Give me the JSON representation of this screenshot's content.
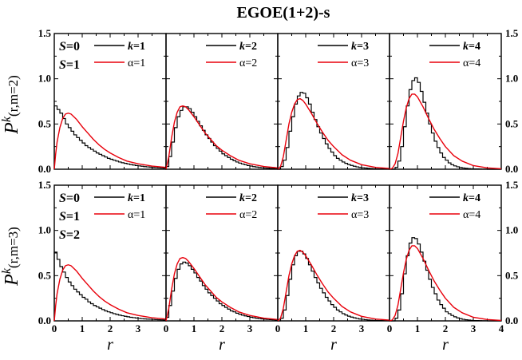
{
  "title": "EGOE(1+2)-s",
  "xlabel": "r",
  "colors": {
    "hist": "#000000",
    "curve": "#e8000b"
  },
  "chart_data": {
    "type": "line",
    "title": "EGOE(1+2)-s",
    "xlabel": "r",
    "xlim": [
      0,
      4
    ],
    "ylim": [
      0,
      1.5
    ],
    "x_ticks": [
      "0",
      "1",
      "2",
      "3",
      "4"
    ],
    "y_ticks": [
      "0.0",
      "0.5",
      "1.0",
      "1.5"
    ],
    "grid": false,
    "rows": [
      {
        "ylabel_main": "P",
        "ylabel_sup": "k",
        "ylabel_args": "(r,m=2)",
        "spin_labels": [
          {
            "var": "S",
            "rest": "=0"
          },
          {
            "var": "S",
            "rest": "=1"
          }
        ],
        "panels": [
          {
            "hist_label": "k=1",
            "curve_label": "α=1",
            "hist_name": "k",
            "hist_val": "=1",
            "curve_text": "α=1",
            "hist_x_step": 0.1,
            "hist": [
              0.7,
              0.66,
              0.62,
              0.56,
              0.5,
              0.46,
              0.42,
              0.38,
              0.35,
              0.32,
              0.29,
              0.26,
              0.24,
              0.22,
              0.2,
              0.18,
              0.165,
              0.15,
              0.135,
              0.12,
              0.11,
              0.1,
              0.09,
              0.08,
              0.072,
              0.065,
              0.058,
              0.052,
              0.046,
              0.041,
              0.037,
              0.033,
              0.029,
              0.026,
              0.023,
              0.02,
              0.018,
              0.016,
              0.014,
              0.012
            ],
            "curve_x": [
              0.0,
              0.05,
              0.1,
              0.2,
              0.3,
              0.4,
              0.5,
              0.6,
              0.7,
              0.8,
              1.0,
              1.2,
              1.4,
              1.6,
              1.8,
              2.0,
              2.3,
              2.6,
              3.0,
              3.5,
              4.0
            ],
            "curve_y": [
              0.0,
              0.17,
              0.3,
              0.46,
              0.56,
              0.61,
              0.62,
              0.61,
              0.58,
              0.55,
              0.47,
              0.4,
              0.33,
              0.27,
              0.22,
              0.18,
              0.13,
              0.09,
              0.06,
              0.035,
              0.02
            ]
          },
          {
            "hist_label": "k=2",
            "curve_label": "α=2",
            "hist_name": "k",
            "hist_val": "=2",
            "curve_text": "α=2",
            "hist_x_step": 0.1,
            "hist": [
              0.03,
              0.14,
              0.3,
              0.46,
              0.58,
              0.65,
              0.69,
              0.69,
              0.67,
              0.63,
              0.58,
              0.53,
              0.48,
              0.43,
              0.38,
              0.34,
              0.3,
              0.26,
              0.23,
              0.2,
              0.17,
              0.15,
              0.13,
              0.11,
              0.095,
              0.08,
              0.068,
              0.058,
              0.049,
              0.041,
              0.035,
              0.029,
              0.024,
              0.02,
              0.017,
              0.014,
              0.012,
              0.01,
              0.008,
              0.007
            ],
            "curve_x": [
              0.0,
              0.1,
              0.2,
              0.3,
              0.4,
              0.5,
              0.6,
              0.7,
              0.8,
              1.0,
              1.2,
              1.4,
              1.6,
              1.8,
              2.0,
              2.3,
              2.6,
              3.0,
              3.5,
              4.0
            ],
            "curve_y": [
              0.0,
              0.14,
              0.35,
              0.52,
              0.63,
              0.69,
              0.7,
              0.69,
              0.66,
              0.58,
              0.49,
              0.4,
              0.33,
              0.26,
              0.21,
              0.15,
              0.1,
              0.06,
              0.03,
              0.015
            ]
          },
          {
            "hist_label": "k=3",
            "curve_label": "α=3",
            "hist_name": "k",
            "hist_val": "=3",
            "curve_text": "α=3",
            "hist_x_step": 0.1,
            "hist": [
              0.0,
              0.03,
              0.1,
              0.24,
              0.42,
              0.58,
              0.72,
              0.81,
              0.85,
              0.84,
              0.79,
              0.72,
              0.63,
              0.55,
              0.47,
              0.4,
              0.34,
              0.28,
              0.23,
              0.19,
              0.15,
              0.12,
              0.1,
              0.08,
              0.065,
              0.052,
              0.042,
              0.033,
              0.026,
              0.02,
              0.016,
              0.013,
              0.01,
              0.008,
              0.006,
              0.005,
              0.004,
              0.003,
              0.002,
              0.002
            ],
            "curve_x": [
              0.0,
              0.1,
              0.2,
              0.3,
              0.4,
              0.5,
              0.6,
              0.7,
              0.8,
              0.9,
              1.0,
              1.2,
              1.4,
              1.6,
              1.8,
              2.0,
              2.3,
              2.6,
              3.0,
              3.5,
              4.0
            ],
            "curve_y": [
              0.0,
              0.03,
              0.14,
              0.32,
              0.5,
              0.63,
              0.72,
              0.77,
              0.78,
              0.76,
              0.72,
              0.62,
              0.51,
              0.41,
              0.32,
              0.25,
              0.16,
              0.1,
              0.05,
              0.02,
              0.008
            ]
          },
          {
            "hist_label": "k=4",
            "curve_label": "α=4",
            "hist_name": "k",
            "hist_val": "=4",
            "curve_text": "α=4",
            "hist_x_step": 0.1,
            "hist": [
              0.0,
              0.0,
              0.02,
              0.09,
              0.25,
              0.47,
              0.7,
              0.88,
              0.98,
              1.01,
              0.96,
              0.86,
              0.74,
              0.62,
              0.5,
              0.4,
              0.31,
              0.24,
              0.18,
              0.13,
              0.1,
              0.07,
              0.05,
              0.037,
              0.027,
              0.019,
              0.014,
              0.01,
              0.007,
              0.005,
              0.004,
              0.003,
              0.002,
              0.001,
              0.001,
              0.0,
              0.0,
              0.0,
              0.0,
              0.0
            ],
            "curve_x": [
              0.0,
              0.1,
              0.2,
              0.3,
              0.4,
              0.5,
              0.6,
              0.7,
              0.8,
              0.9,
              1.0,
              1.2,
              1.4,
              1.6,
              1.8,
              2.0,
              2.3,
              2.6,
              3.0,
              3.5,
              4.0
            ],
            "curve_y": [
              0.0,
              0.01,
              0.06,
              0.17,
              0.35,
              0.53,
              0.68,
              0.78,
              0.83,
              0.83,
              0.8,
              0.69,
              0.56,
              0.44,
              0.34,
              0.25,
              0.15,
              0.09,
              0.04,
              0.015,
              0.005
            ]
          }
        ]
      },
      {
        "ylabel_main": "P",
        "ylabel_sup": "k",
        "ylabel_args": "(r,m=3)",
        "spin_labels": [
          {
            "var": "S",
            "rest": "=0"
          },
          {
            "var": "S",
            "rest": "=1"
          },
          {
            "var": "S",
            "rest": "=2"
          }
        ],
        "panels": [
          {
            "hist_label": "k=1",
            "curve_label": "α=1",
            "hist_name": "k",
            "hist_val": "=1",
            "curve_text": "α=1",
            "hist_x_step": 0.1,
            "hist": [
              0.76,
              0.68,
              0.6,
              0.54,
              0.48,
              0.43,
              0.39,
              0.35,
              0.32,
              0.29,
              0.26,
              0.24,
              0.21,
              0.19,
              0.17,
              0.155,
              0.14,
              0.125,
              0.11,
              0.1,
              0.09,
              0.08,
              0.072,
              0.064,
              0.057,
              0.051,
              0.045,
              0.04,
              0.036,
              0.032,
              0.028,
              0.025,
              0.022,
              0.02,
              0.018,
              0.016,
              0.014,
              0.012,
              0.011,
              0.01
            ],
            "curve_x": [
              0.0,
              0.05,
              0.1,
              0.2,
              0.3,
              0.4,
              0.5,
              0.6,
              0.7,
              0.8,
              1.0,
              1.2,
              1.4,
              1.6,
              1.8,
              2.0,
              2.3,
              2.6,
              3.0,
              3.5,
              4.0
            ],
            "curve_y": [
              0.0,
              0.17,
              0.3,
              0.46,
              0.56,
              0.61,
              0.62,
              0.61,
              0.58,
              0.55,
              0.47,
              0.4,
              0.33,
              0.27,
              0.22,
              0.18,
              0.13,
              0.09,
              0.06,
              0.035,
              0.02
            ]
          },
          {
            "hist_label": "k=2",
            "curve_label": "α=2",
            "hist_name": "k",
            "hist_val": "=2",
            "curve_text": "α=2",
            "hist_x_step": 0.1,
            "hist": [
              0.04,
              0.17,
              0.33,
              0.47,
              0.57,
              0.63,
              0.65,
              0.64,
              0.61,
              0.57,
              0.53,
              0.48,
              0.44,
              0.39,
              0.35,
              0.31,
              0.28,
              0.25,
              0.22,
              0.19,
              0.17,
              0.15,
              0.13,
              0.11,
              0.1,
              0.085,
              0.074,
              0.064,
              0.055,
              0.048,
              0.041,
              0.035,
              0.03,
              0.026,
              0.022,
              0.019,
              0.016,
              0.014,
              0.012,
              0.01
            ],
            "curve_x": [
              0.0,
              0.1,
              0.2,
              0.3,
              0.4,
              0.5,
              0.6,
              0.7,
              0.8,
              1.0,
              1.2,
              1.4,
              1.6,
              1.8,
              2.0,
              2.3,
              2.6,
              3.0,
              3.5,
              4.0
            ],
            "curve_y": [
              0.0,
              0.14,
              0.35,
              0.52,
              0.63,
              0.69,
              0.7,
              0.69,
              0.66,
              0.58,
              0.49,
              0.4,
              0.33,
              0.26,
              0.21,
              0.15,
              0.1,
              0.06,
              0.03,
              0.015
            ]
          },
          {
            "hist_label": "k=3",
            "curve_label": "α=3",
            "hist_name": "k",
            "hist_val": "=3",
            "curve_text": "α=3",
            "hist_x_step": 0.1,
            "hist": [
              0.0,
              0.03,
              0.12,
              0.28,
              0.46,
              0.62,
              0.72,
              0.77,
              0.77,
              0.74,
              0.69,
              0.62,
              0.55,
              0.48,
              0.42,
              0.36,
              0.31,
              0.26,
              0.22,
              0.18,
              0.15,
              0.12,
              0.1,
              0.08,
              0.065,
              0.052,
              0.042,
              0.034,
              0.027,
              0.021,
              0.017,
              0.013,
              0.01,
              0.008,
              0.006,
              0.005,
              0.004,
              0.003,
              0.002,
              0.002
            ],
            "curve_x": [
              0.0,
              0.1,
              0.2,
              0.3,
              0.4,
              0.5,
              0.6,
              0.7,
              0.8,
              0.9,
              1.0,
              1.2,
              1.4,
              1.6,
              1.8,
              2.0,
              2.3,
              2.6,
              3.0,
              3.5,
              4.0
            ],
            "curve_y": [
              0.0,
              0.03,
              0.14,
              0.32,
              0.5,
              0.63,
              0.72,
              0.77,
              0.78,
              0.76,
              0.72,
              0.62,
              0.51,
              0.41,
              0.32,
              0.25,
              0.16,
              0.1,
              0.05,
              0.02,
              0.008
            ]
          },
          {
            "hist_label": "k=4",
            "curve_label": "α=4",
            "hist_name": "k",
            "hist_val": "=4",
            "curve_text": "α=4",
            "hist_x_step": 0.1,
            "hist": [
              0.0,
              0.0,
              0.03,
              0.12,
              0.3,
              0.52,
              0.72,
              0.86,
              0.92,
              0.91,
              0.85,
              0.76,
              0.66,
              0.56,
              0.46,
              0.37,
              0.3,
              0.23,
              0.18,
              0.14,
              0.1,
              0.08,
              0.06,
              0.045,
              0.033,
              0.024,
              0.017,
              0.012,
              0.009,
              0.006,
              0.004,
              0.003,
              0.002,
              0.001,
              0.001,
              0.0,
              0.0,
              0.0,
              0.0,
              0.0
            ],
            "curve_x": [
              0.0,
              0.1,
              0.2,
              0.3,
              0.4,
              0.5,
              0.6,
              0.7,
              0.8,
              0.9,
              1.0,
              1.2,
              1.4,
              1.6,
              1.8,
              2.0,
              2.3,
              2.6,
              3.0,
              3.5,
              4.0
            ],
            "curve_y": [
              0.0,
              0.01,
              0.06,
              0.17,
              0.35,
              0.53,
              0.68,
              0.78,
              0.83,
              0.83,
              0.8,
              0.69,
              0.56,
              0.44,
              0.34,
              0.25,
              0.15,
              0.09,
              0.04,
              0.015,
              0.005
            ]
          }
        ]
      }
    ]
  }
}
